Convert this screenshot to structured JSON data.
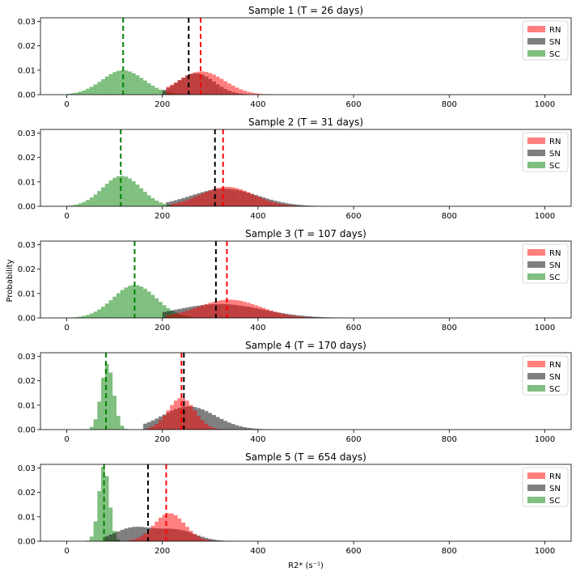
{
  "chart_data": {
    "type": "histogram",
    "ylabel": "Probability",
    "xlabel": "R2* (s⁻¹)",
    "x_ticks": [
      0,
      200,
      400,
      600,
      800,
      1000
    ],
    "y_ticks": [
      0.0,
      0.01,
      0.02,
      0.03
    ],
    "y_tick_labels": [
      "0.00",
      "0.01",
      "0.02",
      "0.03"
    ],
    "xlim": [
      -55,
      1055
    ],
    "ylim": [
      0,
      0.0315
    ],
    "bin_width": 8,
    "series_colors": {
      "RN": "#ff0000",
      "SN": "#000000",
      "SC": "#008000"
    },
    "legend": [
      "RN",
      "SN",
      "SC"
    ],
    "legend_position": "top-right",
    "panels": [
      {
        "title": "Sample 1 (T = 26 days)",
        "means": {
          "RN": 280,
          "SN": 255,
          "SC": 118
        },
        "dists": {
          "SC": [
            {
              "c": 118,
              "w": 44,
              "a": 0.01,
              "min": 0,
              "max": 250
            }
          ],
          "SN": [
            {
              "c": 270,
              "w": 38,
              "a": 0.0088,
              "min": 200,
              "max": 600
            }
          ],
          "RN": [
            {
              "c": 282,
              "w": 48,
              "a": 0.0095,
              "min": 210,
              "max": 600
            }
          ]
        }
      },
      {
        "title": "Sample 2 (T = 31 days)",
        "means": {
          "RN": 327,
          "SN": 310,
          "SC": 113
        },
        "dists": {
          "SC": [
            {
              "c": 115,
              "w": 40,
              "a": 0.0125,
              "min": 0,
              "max": 240
            }
          ],
          "SN": [
            {
              "c": 330,
              "w": 70,
              "a": 0.0072,
              "min": 210,
              "max": 800
            }
          ],
          "RN": [
            {
              "c": 335,
              "w": 55,
              "a": 0.008,
              "min": 220,
              "max": 700
            }
          ]
        }
      },
      {
        "title": "Sample 3 (T = 107 days)",
        "means": {
          "RN": 335,
          "SN": 312,
          "SC": 142
        },
        "dists": {
          "SC": [
            {
              "c": 142,
              "w": 45,
              "a": 0.0135,
              "min": 0,
              "max": 260
            }
          ],
          "SN": [
            {
              "c": 320,
              "w": 90,
              "a": 0.0057,
              "min": 200,
              "max": 850
            }
          ],
          "RN": [
            {
              "c": 340,
              "w": 65,
              "a": 0.0075,
              "min": 210,
              "max": 750
            }
          ]
        }
      },
      {
        "title": "Sample 4 (T = 170 days)",
        "means": {
          "RN": 240,
          "SN": 245,
          "SC": 82
        },
        "dists": {
          "SC": [
            {
              "c": 85,
              "w": 13,
              "a": 0.027,
              "min": 0,
              "max": 150
            }
          ],
          "SN": [
            {
              "c": 255,
              "w": 55,
              "a": 0.0095,
              "min": 160,
              "max": 700
            }
          ],
          "RN": [
            {
              "c": 240,
              "w": 28,
              "a": 0.013,
              "min": 170,
              "max": 480
            }
          ]
        }
      },
      {
        "title": "Sample 5 (T = 654 days)",
        "means": {
          "RN": 208,
          "SN": 170,
          "SC": 78
        },
        "dists": {
          "SC": [
            {
              "c": 78,
              "w": 11,
              "a": 0.031,
              "min": 0,
              "max": 140
            }
          ],
          "SN": [
            {
              "c": 140,
              "w": 40,
              "a": 0.0055,
              "min": 80,
              "max": 430
            },
            {
              "c": 230,
              "w": 40,
              "a": 0.0045,
              "min": 80,
              "max": 430
            }
          ],
          "RN": [
            {
              "c": 215,
              "w": 32,
              "a": 0.0115,
              "min": 130,
              "max": 360
            }
          ]
        }
      }
    ]
  }
}
